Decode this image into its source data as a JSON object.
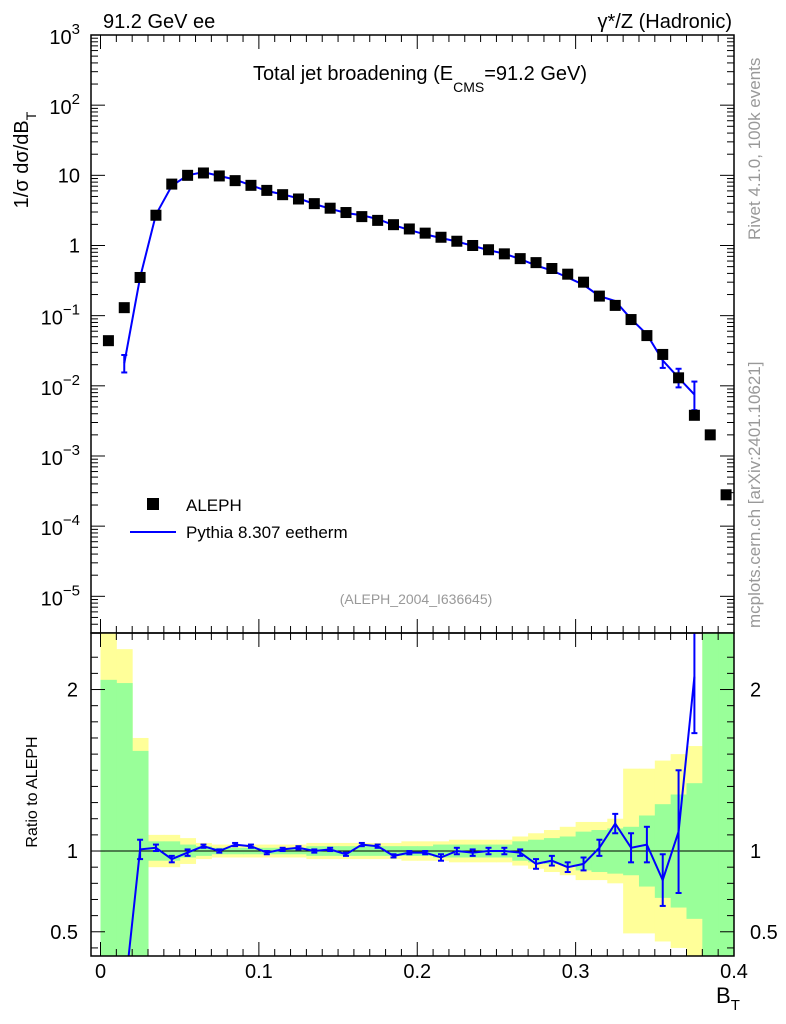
{
  "header": {
    "left": "91.2 GeV ee",
    "right": "γ*/Z (Hadronic)"
  },
  "side_labels": {
    "rivet": "Rivet 4.1.0,  100k events",
    "mcplots": "mcplots.cern.ch [arXiv:2401.10621]"
  },
  "colors": {
    "data": "#000000",
    "mc": "#0000ff",
    "band_inner": "#99ff99",
    "band_outer": "#ffff99",
    "side_text": "#999999"
  },
  "chart_data": [
    {
      "type": "scatter",
      "scale": "log",
      "title": "Total jet broadening (E",
      "title_sub": "CMS",
      "title_tail": "=91.2 GeV)",
      "ylabel": "1/σ  dσ/dB",
      "ylabel_sub": "T",
      "analysis_tag": "(ALEPH_2004_I636645)",
      "ylim": [
        3e-06,
        1000
      ],
      "xlim": [
        -0.006,
        0.4
      ],
      "yticks": [
        {
          "value": 1000,
          "base": "10",
          "exp": "3"
        },
        {
          "value": 100,
          "base": "10",
          "exp": "2"
        },
        {
          "value": 10,
          "base": "10",
          "exp": ""
        },
        {
          "value": 1,
          "base": "1",
          "exp": ""
        },
        {
          "value": 0.1,
          "base": "10",
          "exp": "−1"
        },
        {
          "value": 0.01,
          "base": "10",
          "exp": "−2"
        },
        {
          "value": 0.001,
          "base": "10",
          "exp": "−3"
        },
        {
          "value": 0.0001,
          "base": "10",
          "exp": "−4"
        },
        {
          "value": 1e-05,
          "base": "10",
          "exp": "−5"
        }
      ],
      "legend": [
        {
          "label": "ALEPH",
          "kind": "marker"
        },
        {
          "label": "Pythia 8.307 eetherm",
          "kind": "line"
        }
      ],
      "series": [
        {
          "name": "ALEPH",
          "x": [
            0.005,
            0.015,
            0.025,
            0.035,
            0.045,
            0.055,
            0.065,
            0.075,
            0.085,
            0.095,
            0.105,
            0.115,
            0.125,
            0.135,
            0.145,
            0.155,
            0.165,
            0.175,
            0.185,
            0.195,
            0.205,
            0.215,
            0.225,
            0.235,
            0.245,
            0.255,
            0.265,
            0.275,
            0.285,
            0.295,
            0.305,
            0.315,
            0.325,
            0.335,
            0.345,
            0.355,
            0.365,
            0.375,
            0.385,
            0.395
          ],
          "values": [
            0.044,
            0.13,
            0.35,
            2.7,
            7.5,
            10.0,
            10.8,
            9.8,
            8.4,
            7.2,
            6.1,
            5.3,
            4.6,
            3.95,
            3.4,
            2.95,
            2.58,
            2.28,
            1.98,
            1.72,
            1.5,
            1.31,
            1.15,
            1.0,
            0.87,
            0.76,
            0.65,
            0.57,
            0.47,
            0.39,
            0.3,
            0.19,
            0.14,
            0.088,
            0.052,
            0.028,
            0.013,
            0.0038,
            0.002,
            0.00028
          ]
        },
        {
          "name": "Pythia 8.307 eetherm",
          "x": [
            0.015,
            0.025,
            0.035,
            0.045,
            0.055,
            0.065,
            0.075,
            0.085,
            0.095,
            0.105,
            0.115,
            0.125,
            0.135,
            0.145,
            0.155,
            0.165,
            0.175,
            0.185,
            0.195,
            0.205,
            0.215,
            0.225,
            0.235,
            0.245,
            0.255,
            0.265,
            0.275,
            0.285,
            0.295,
            0.305,
            0.315,
            0.325,
            0.335,
            0.345,
            0.355,
            0.365,
            0.375
          ],
          "values": [
            0.021,
            0.35,
            2.75,
            7.1,
            10.0,
            11.1,
            9.8,
            8.7,
            7.2,
            6.0,
            5.35,
            4.7,
            3.9,
            3.35,
            2.9,
            2.7,
            2.38,
            1.95,
            1.67,
            1.44,
            1.28,
            1.14,
            0.99,
            0.86,
            0.765,
            0.64,
            0.52,
            0.44,
            0.35,
            0.275,
            0.19,
            0.162,
            0.09,
            0.054,
            0.023,
            0.013,
            0.0075
          ],
          "err_lo": [
            0.0155,
            0,
            0,
            0,
            0,
            0,
            0,
            0,
            0,
            0,
            0,
            0,
            0,
            0,
            0,
            0,
            0,
            0,
            0,
            0,
            0,
            0,
            0,
            0,
            0,
            0,
            0,
            0,
            0,
            0,
            0,
            0,
            0,
            0,
            0.018,
            0.0095,
            0.0045
          ],
          "err_hi": [
            0.0275,
            0,
            0,
            0,
            0,
            0,
            0,
            0,
            0,
            0,
            0,
            0,
            0,
            0,
            0,
            0,
            0,
            0,
            0,
            0,
            0,
            0,
            0,
            0,
            0,
            0,
            0,
            0,
            0,
            0,
            0,
            0,
            0,
            0,
            0.028,
            0.0175,
            0.0115
          ]
        }
      ]
    },
    {
      "type": "line",
      "ylabel": "Ratio to ALEPH",
      "xlabel": "B",
      "xlabel_sub": "T",
      "ylim": [
        0.35,
        2.35
      ],
      "xlim": [
        -0.006,
        0.4
      ],
      "xticks": [
        0,
        0.1,
        0.2,
        0.3,
        0.4
      ],
      "xtick_labels": [
        "0",
        "0.1",
        "0.2",
        "0.3",
        "0.4"
      ],
      "yticks": [
        0.5,
        1,
        2
      ],
      "ytick_labels": [
        "0.5",
        "1",
        "2"
      ],
      "reference_line": 1,
      "bin_edges": [
        0,
        0.01,
        0.02,
        0.03,
        0.04,
        0.05,
        0.06,
        0.07,
        0.08,
        0.09,
        0.1,
        0.11,
        0.12,
        0.13,
        0.14,
        0.15,
        0.16,
        0.17,
        0.18,
        0.19,
        0.2,
        0.21,
        0.22,
        0.23,
        0.24,
        0.25,
        0.26,
        0.27,
        0.28,
        0.29,
        0.3,
        0.31,
        0.32,
        0.33,
        0.34,
        0.35,
        0.36,
        0.37,
        0.38,
        0.39,
        0.4
      ],
      "band_inner_lo": [
        0.35,
        0.35,
        0.35,
        0.94,
        0.94,
        0.96,
        0.97,
        0.98,
        0.98,
        0.98,
        0.98,
        0.98,
        0.98,
        0.97,
        0.97,
        0.97,
        0.97,
        0.97,
        0.97,
        0.97,
        0.97,
        0.96,
        0.96,
        0.96,
        0.96,
        0.96,
        0.94,
        0.93,
        0.92,
        0.91,
        0.88,
        0.87,
        0.86,
        0.85,
        0.78,
        0.71,
        0.65,
        0.58,
        0.35,
        0.35
      ],
      "band_inner_hi": [
        2.06,
        2.04,
        1.62,
        1.06,
        1.06,
        1.04,
        1.03,
        1.02,
        1.02,
        1.02,
        1.02,
        1.02,
        1.02,
        1.03,
        1.03,
        1.03,
        1.03,
        1.03,
        1.03,
        1.03,
        1.03,
        1.04,
        1.04,
        1.04,
        1.04,
        1.04,
        1.06,
        1.07,
        1.08,
        1.09,
        1.12,
        1.13,
        1.14,
        1.15,
        1.22,
        1.29,
        1.35,
        1.42,
        2.35,
        2.35
      ],
      "band_outer_lo": [
        0.35,
        0.35,
        0.35,
        0.9,
        0.9,
        0.92,
        0.95,
        0.96,
        0.96,
        0.96,
        0.96,
        0.96,
        0.96,
        0.95,
        0.95,
        0.95,
        0.95,
        0.95,
        0.95,
        0.94,
        0.94,
        0.94,
        0.93,
        0.93,
        0.93,
        0.93,
        0.91,
        0.89,
        0.87,
        0.85,
        0.82,
        0.82,
        0.8,
        0.49,
        0.49,
        0.44,
        0.4,
        0.35,
        0.35,
        0.35
      ],
      "band_outer_hi": [
        2.35,
        2.25,
        1.7,
        1.1,
        1.1,
        1.08,
        1.05,
        1.04,
        1.04,
        1.04,
        1.04,
        1.04,
        1.04,
        1.05,
        1.05,
        1.05,
        1.05,
        1.05,
        1.05,
        1.06,
        1.06,
        1.06,
        1.07,
        1.07,
        1.07,
        1.07,
        1.09,
        1.11,
        1.13,
        1.15,
        1.18,
        1.18,
        1.2,
        1.51,
        1.51,
        1.56,
        1.6,
        1.65,
        2.35,
        2.35
      ],
      "series": [
        {
          "name": "Pythia 8.307 eetherm",
          "x": [
            0.015,
            0.025,
            0.035,
            0.045,
            0.055,
            0.065,
            0.075,
            0.085,
            0.095,
            0.105,
            0.115,
            0.125,
            0.135,
            0.145,
            0.155,
            0.165,
            0.175,
            0.185,
            0.195,
            0.205,
            0.215,
            0.225,
            0.235,
            0.245,
            0.255,
            0.265,
            0.275,
            0.285,
            0.295,
            0.305,
            0.315,
            0.325,
            0.335,
            0.345,
            0.355,
            0.365,
            0.375
          ],
          "values": [
            0.1,
            1.01,
            1.02,
            0.95,
            0.99,
            1.03,
            1.0,
            1.04,
            1.03,
            0.99,
            1.01,
            1.02,
            1.0,
            1.01,
            0.98,
            1.04,
            1.03,
            0.97,
            0.99,
            0.99,
            0.96,
            1.0,
            0.99,
            1.0,
            1.0,
            0.99,
            0.92,
            0.94,
            0.9,
            0.92,
            1.02,
            1.17,
            1.02,
            1.04,
            0.82,
            1.12,
            2.08
          ],
          "err_lo": [
            0,
            0.06,
            0.02,
            0.02,
            0.02,
            0.01,
            0.01,
            0.01,
            0.01,
            0.01,
            0.01,
            0.01,
            0.01,
            0.01,
            0.01,
            0.01,
            0.01,
            0.01,
            0.01,
            0.01,
            0.02,
            0.02,
            0.02,
            0.02,
            0.02,
            0.02,
            0.03,
            0.03,
            0.03,
            0.04,
            0.05,
            0.06,
            0.09,
            0.11,
            0.16,
            0.38,
            0.35
          ],
          "err_hi": [
            0,
            0.06,
            0.02,
            0.02,
            0.02,
            0.01,
            0.01,
            0.01,
            0.01,
            0.01,
            0.01,
            0.01,
            0.01,
            0.01,
            0.01,
            0.01,
            0.01,
            0.01,
            0.01,
            0.01,
            0.02,
            0.02,
            0.02,
            0.02,
            0.02,
            0.02,
            0.03,
            0.03,
            0.03,
            0.04,
            0.05,
            0.06,
            0.09,
            0.11,
            0.16,
            0.38,
            0.35
          ]
        }
      ]
    }
  ]
}
